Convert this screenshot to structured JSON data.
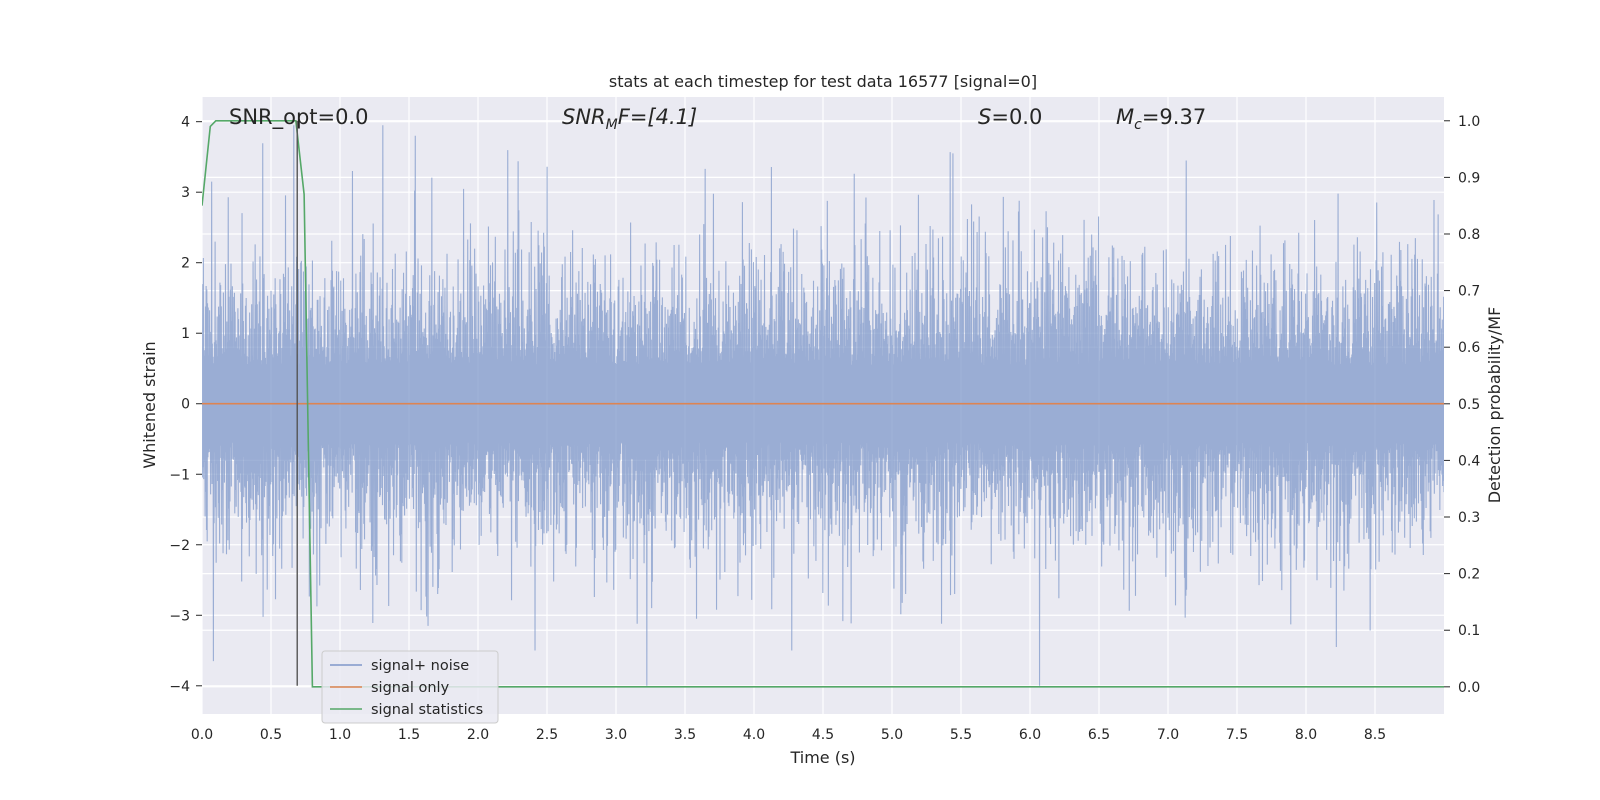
{
  "chart_data": {
    "type": "line",
    "title": "stats at each timestep for test data 16577 [signal=0]",
    "xlabel": "Time (s)",
    "ylabel": "Whitened strain",
    "ylabel_right": "Detection probability/MF",
    "xlim": [
      0.0,
      9.0
    ],
    "ylim": [
      -4.4,
      4.35
    ],
    "ylim_right": [
      -0.048,
      1.042
    ],
    "x_ticks": [
      "0.0",
      "0.5",
      "1.0",
      "1.5",
      "2.0",
      "2.5",
      "3.0",
      "3.5",
      "4.0",
      "4.5",
      "5.0",
      "5.5",
      "6.0",
      "6.5",
      "7.0",
      "7.5",
      "8.0",
      "8.5"
    ],
    "y_ticks": [
      "4",
      "3",
      "2",
      "1",
      "0",
      "−1",
      "−2",
      "−3",
      "−4"
    ],
    "y_ticks_right": [
      "1.0",
      "0.9",
      "0.8",
      "0.7",
      "0.6",
      "0.5",
      "0.4",
      "0.3",
      "0.2",
      "0.1",
      "0.0"
    ],
    "grid": true,
    "legend_position": "lower-left",
    "annotations": {
      "snr_opt": "SNR_opt=0.0",
      "snr_mf_main": "SNR",
      "snr_mf_sub": "M",
      "snr_mf_rest": "F=[4.1]",
      "s_main": "S",
      "s_rest": "=0.0",
      "mc_main": "M",
      "mc_sub": "c",
      "mc_rest": "=9.37"
    },
    "event_marker_x": 0.69,
    "series": [
      {
        "name": "signal+ noise",
        "color": "#7f98c9",
        "axis": "left",
        "noise_envelope": {
          "typical_abs": 1.7,
          "min": -4.0,
          "max": 3.95
        },
        "notable_peaks": [
          {
            "x": 0.07,
            "y": 3.15
          },
          {
            "x": 1.31,
            "y": 3.95
          },
          {
            "x": 1.09,
            "y": 3.3
          },
          {
            "x": 5.44,
            "y": 3.55
          },
          {
            "x": 7.13,
            "y": 3.45
          },
          {
            "x": 3.58,
            "y": -3.05
          },
          {
            "x": 2.41,
            "y": -3.5
          },
          {
            "x": 4.27,
            "y": -3.5
          },
          {
            "x": 6.07,
            "y": -4.0
          },
          {
            "x": 8.22,
            "y": -3.45
          },
          {
            "x": 0.08,
            "y": -3.65
          }
        ]
      },
      {
        "name": "signal only",
        "color": "#dd8452",
        "axis": "left",
        "x": [
          0.0,
          9.0
        ],
        "y": [
          0.0,
          0.0
        ]
      },
      {
        "name": "signal statistics",
        "color": "#55a868",
        "axis": "right",
        "x": [
          0.0,
          0.06,
          0.1,
          0.2,
          0.68,
          0.74,
          0.8,
          9.0
        ],
        "y": [
          0.85,
          0.99,
          1.0,
          1.0,
          1.0,
          0.87,
          0.0,
          0.0
        ]
      }
    ]
  }
}
